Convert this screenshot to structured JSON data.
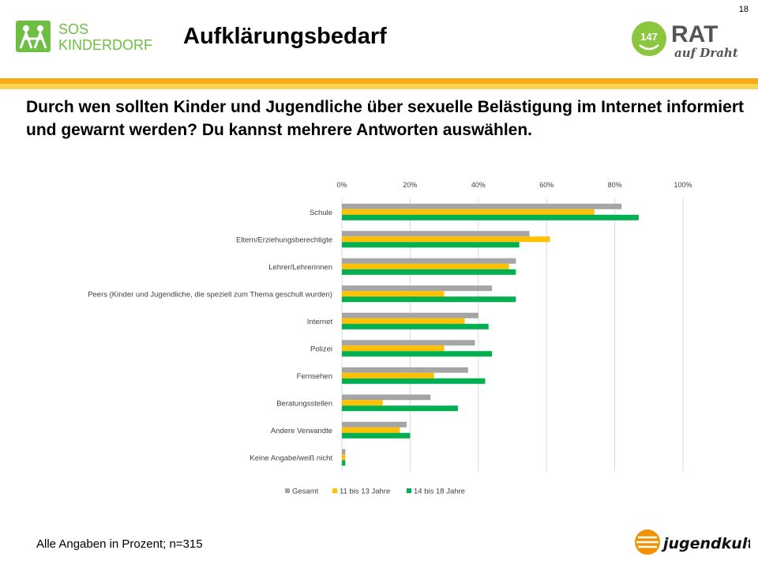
{
  "page_number": "18",
  "title": "Aufklärungsbedarf",
  "question": "Durch wen sollten Kinder und Jugendliche über sexuelle Belästigung im Internet informiert und gewarnt werden? Du kannst mehrere Antworten auswählen.",
  "footnote": "Alle Angaben in Prozent; n=315",
  "logos": {
    "sos": {
      "line1": "SOS",
      "line2": "KINDERDORF"
    },
    "rat": {
      "number": "147",
      "word": "RAT",
      "tagline": "auf Draht"
    },
    "jugendkultur": "jugendkultur.at"
  },
  "colors": {
    "gesamt": "#a5a5a5",
    "age_11_13": "#ffc000",
    "age_14_18": "#00b050",
    "sos_green": "#6fbe44",
    "rat_green": "#8cc63f",
    "jk_orange": "#f39200"
  },
  "chart_data": {
    "type": "bar",
    "orientation": "horizontal",
    "categories": [
      "Schule",
      "Eltern/Erziehungsberechtigte",
      "Lehrer/Lehrerinnen",
      "Peers (Kinder und Jugendliche, die speziell zum Thema geschult wurden)",
      "Internet",
      "Polizei",
      "Fernsehen",
      "Beratungsstellen",
      "Andere Verwandte",
      "Keine Angabe/weiß nicht"
    ],
    "series": [
      {
        "name": "Gesamt",
        "values": [
          82,
          55,
          51,
          44,
          40,
          39,
          37,
          26,
          19,
          1
        ]
      },
      {
        "name": "11 bis 13 Jahre",
        "values": [
          74,
          61,
          49,
          30,
          36,
          30,
          27,
          12,
          17,
          1
        ]
      },
      {
        "name": "14 bis 18 Jahre",
        "values": [
          87,
          52,
          51,
          51,
          43,
          44,
          42,
          34,
          20,
          1
        ]
      }
    ],
    "x_ticks": [
      "0%",
      "20%",
      "40%",
      "60%",
      "80%",
      "100%"
    ],
    "xlim": [
      0,
      100
    ],
    "grid": true,
    "legend_position": "bottom"
  }
}
